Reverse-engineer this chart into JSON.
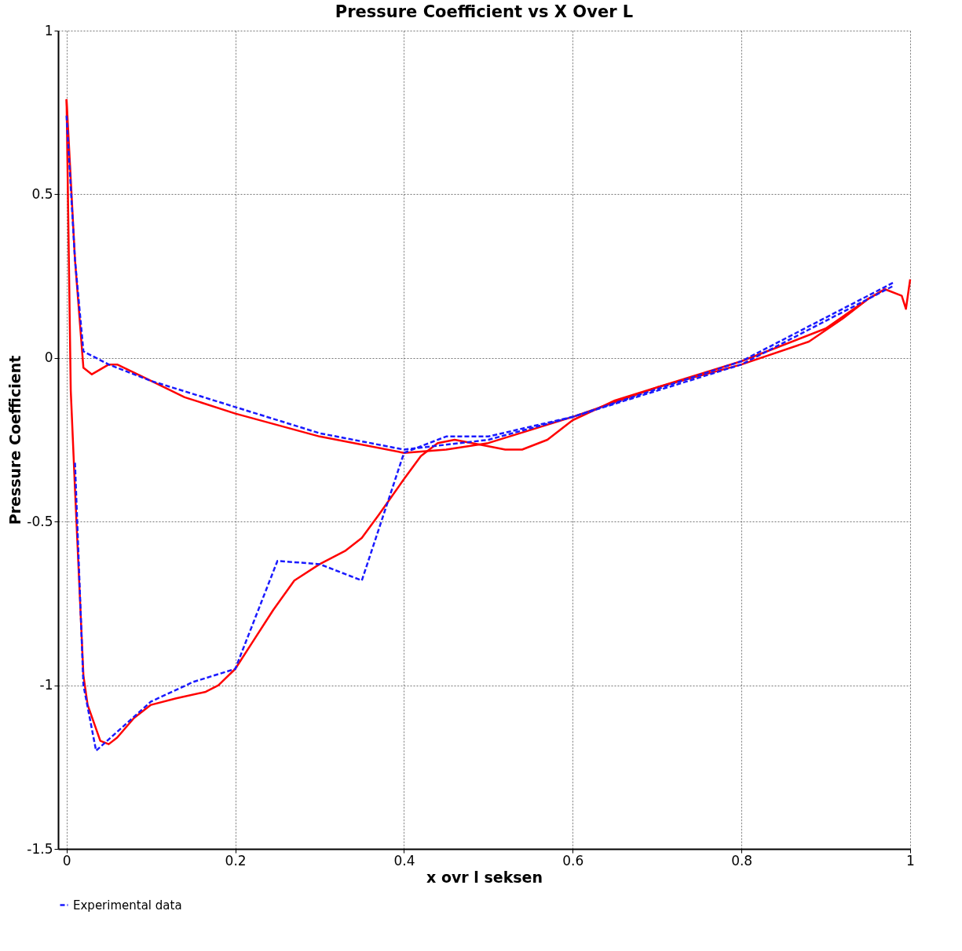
{
  "chart_data": {
    "type": "line",
    "title": "Pressure Coefficient vs X Over L",
    "xlabel": "x ovr l seksen",
    "ylabel": "Pressure Coefficient",
    "xlim": [
      -0.01,
      1.0
    ],
    "ylim": [
      -1.5,
      1
    ],
    "xticks": [
      0,
      0.2,
      0.4,
      0.6,
      0.8,
      1
    ],
    "yticks": [
      -1.5,
      -1,
      -0.5,
      0,
      0.5,
      1
    ],
    "grid": true,
    "legend": "bottom",
    "series": [
      {
        "color": "#ff0000",
        "line_style": "solid",
        "x": [
          0,
          0.01,
          0.02,
          0.03,
          0.05,
          0.06,
          0.1,
          0.14,
          0.2,
          0.3,
          0.4,
          0.45,
          0.5,
          0.6,
          0.7,
          0.8,
          0.9,
          0.95,
          0.97
        ],
        "values": [
          0.79,
          0.3,
          -0.03,
          -0.05,
          -0.02,
          -0.02,
          -0.07,
          -0.12,
          -0.17,
          -0.24,
          -0.29,
          -0.28,
          -0.26,
          -0.18,
          -0.09,
          -0.01,
          0.09,
          0.18,
          0.21
        ]
      },
      {
        "color": "#ff0000",
        "line_style": "solid",
        "x": [
          0,
          0.005,
          0.01,
          0.02,
          0.025,
          0.04,
          0.05,
          0.06,
          0.08,
          0.1,
          0.13,
          0.165,
          0.18,
          0.2,
          0.22,
          0.245,
          0.27,
          0.3,
          0.33,
          0.35,
          0.37,
          0.4,
          0.42,
          0.44,
          0.46,
          0.5,
          0.52,
          0.54,
          0.57,
          0.6,
          0.65,
          0.7,
          0.8,
          0.88,
          0.92,
          0.95,
          0.97,
          0.99,
          0.995,
          1.0
        ],
        "values": [
          0.79,
          -0.1,
          -0.4,
          -0.97,
          -1.06,
          -1.17,
          -1.18,
          -1.16,
          -1.1,
          -1.06,
          -1.04,
          -1.02,
          -1.0,
          -0.95,
          -0.87,
          -0.77,
          -0.68,
          -0.63,
          -0.59,
          -0.55,
          -0.48,
          -0.37,
          -0.3,
          -0.26,
          -0.25,
          -0.27,
          -0.28,
          -0.28,
          -0.25,
          -0.19,
          -0.13,
          -0.09,
          -0.02,
          0.05,
          0.12,
          0.18,
          0.21,
          0.19,
          0.15,
          0.24
        ]
      },
      {
        "name": "Experimental data",
        "color": "#1a1aff",
        "line_style": "dashed",
        "x": [
          0,
          0.01,
          0.02,
          0.05,
          0.1,
          0.2,
          0.3,
          0.4,
          0.5,
          0.6,
          0.8,
          0.98
        ],
        "values": [
          0.74,
          0.3,
          0.02,
          -0.02,
          -0.07,
          -0.15,
          -0.23,
          -0.28,
          -0.25,
          -0.18,
          -0.01,
          0.23
        ]
      },
      {
        "color": "#1a1aff",
        "line_style": "dashed",
        "x": [
          0.01,
          0.02,
          0.035,
          0.1,
          0.15,
          0.2,
          0.25,
          0.3,
          0.35,
          0.4,
          0.45,
          0.5,
          0.6,
          0.8,
          0.98
        ],
        "values": [
          -0.32,
          -1.0,
          -1.2,
          -1.05,
          -0.99,
          -0.95,
          -0.62,
          -0.63,
          -0.68,
          -0.29,
          -0.24,
          -0.24,
          -0.18,
          -0.02,
          0.22
        ]
      }
    ]
  }
}
